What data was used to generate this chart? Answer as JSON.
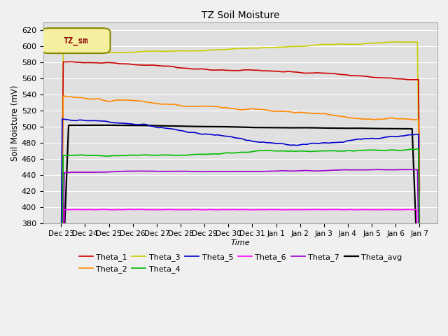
{
  "title": "TZ Soil Moisture",
  "xlabel": "Time",
  "ylabel": "Soil Moisture (mV)",
  "ylim": [
    380,
    630
  ],
  "yticks": [
    380,
    400,
    420,
    440,
    460,
    480,
    500,
    520,
    540,
    560,
    580,
    600,
    620
  ],
  "fig_bg": "#f0f0f0",
  "ax_bg": "#e0e0e0",
  "legend_label": "TZ_sm",
  "legend_label_color": "#8B0000",
  "legend_box_color": "#f5f0a0",
  "series": {
    "Theta_1": {
      "color": "#cc0000"
    },
    "Theta_2": {
      "color": "#ff8800"
    },
    "Theta_3": {
      "color": "#cccc00"
    },
    "Theta_4": {
      "color": "#00bb00"
    },
    "Theta_5": {
      "color": "#0000cc"
    },
    "Theta_6": {
      "color": "#ff00ff"
    },
    "Theta_7": {
      "color": "#9900cc"
    },
    "Theta_avg": {
      "color": "#000000"
    }
  },
  "x_tick_labels": [
    "Dec 23",
    "Dec 24",
    "Dec 25",
    "Dec 26",
    "Dec 27",
    "Dec 28",
    "Dec 29",
    "Dec 30",
    "Dec 31",
    "Jan 1",
    "Jan 2",
    "Jan 3",
    "Jan 4",
    "Jan 5",
    "Jan 6",
    "Jan 7"
  ],
  "n_points": 337
}
